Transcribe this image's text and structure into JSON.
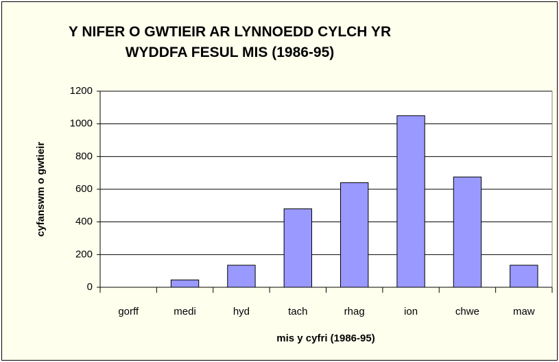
{
  "chart_data": {
    "type": "bar",
    "title": "Y NIFER O GWTIEIR AR LYNNOEDD CYLCH YR WYDDFA FESUL MIS (1986-95)",
    "x_label": "mis y cyfri (1986-95)",
    "y_label": "cyfanswm o gwtieir",
    "categories": [
      "gorff",
      "medi",
      "hyd",
      "tach",
      "rhag",
      "ion",
      "chwe",
      "maw"
    ],
    "values": [
      0,
      45,
      135,
      480,
      640,
      1050,
      675,
      135
    ],
    "color": "#9999ff",
    "ylim": [
      0,
      1200
    ],
    "yticks": [
      0,
      200,
      400,
      600,
      800,
      1000,
      1200
    ],
    "grid": true
  }
}
